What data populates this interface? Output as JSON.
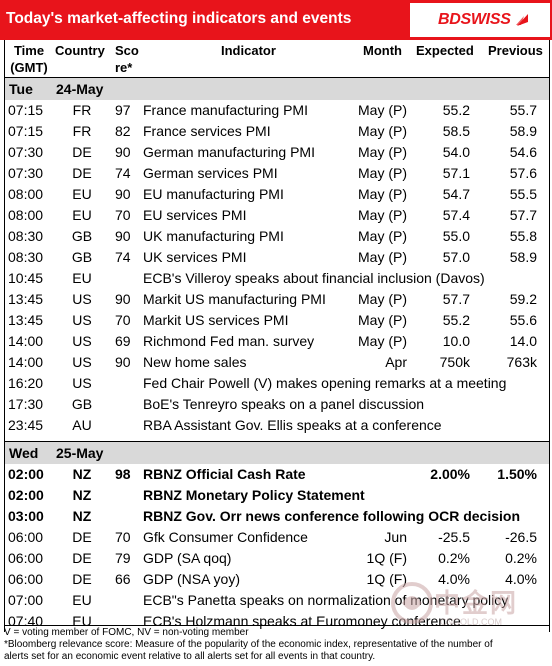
{
  "header": {
    "title": "Today's market-affecting indicators and events"
  },
  "brand": {
    "logo_text": "BDSWISS",
    "accent": "#e8141b"
  },
  "columns": {
    "time": [
      "Time",
      "(GMT)"
    ],
    "country": "Country",
    "score": [
      "Sco",
      "re*"
    ],
    "indicator": "Indicator",
    "month": "Month",
    "expected": "Expected",
    "previous": "Previous"
  },
  "days": [
    {
      "weekday": "Tue",
      "date": "24-May",
      "rows": [
        {
          "time": "07:15",
          "country": "FR",
          "score": "97",
          "indicator": "France manufacturing PMI",
          "month": "May (P)",
          "expected": "55.2",
          "previous": "55.7",
          "bold": false
        },
        {
          "time": "07:15",
          "country": "FR",
          "score": "82",
          "indicator": "France services PMI",
          "month": "May (P)",
          "expected": "58.5",
          "previous": "58.9",
          "bold": false
        },
        {
          "time": "07:30",
          "country": "DE",
          "score": "90",
          "indicator": "German manufacturing PMI",
          "month": "May (P)",
          "expected": "54.0",
          "previous": "54.6",
          "bold": false
        },
        {
          "time": "07:30",
          "country": "DE",
          "score": "74",
          "indicator": "German services PMI",
          "month": "May (P)",
          "expected": "57.1",
          "previous": "57.6",
          "bold": false
        },
        {
          "time": "08:00",
          "country": "EU",
          "score": "90",
          "indicator": "EU manufacturing PMI",
          "month": "May (P)",
          "expected": "54.7",
          "previous": "55.5",
          "bold": false
        },
        {
          "time": "08:00",
          "country": "EU",
          "score": "70",
          "indicator": "EU services PMI",
          "month": "May (P)",
          "expected": "57.4",
          "previous": "57.7",
          "bold": false
        },
        {
          "time": "08:30",
          "country": "GB",
          "score": "90",
          "indicator": "UK manufacturing PMI",
          "month": "May (P)",
          "expected": "55.0",
          "previous": "55.8",
          "bold": false
        },
        {
          "time": "08:30",
          "country": "GB",
          "score": "74",
          "indicator": "UK services PMI",
          "month": "May (P)",
          "expected": "57.0",
          "previous": "58.9",
          "bold": false
        },
        {
          "time": "10:45",
          "country": "EU",
          "score": "",
          "indicator": "ECB's Villeroy speaks about financial inclusion (Davos)",
          "month": "",
          "expected": "",
          "previous": "",
          "bold": false
        },
        {
          "time": "13:45",
          "country": "US",
          "score": "90",
          "indicator": "Markit US manufacturing PMI",
          "month": "May (P)",
          "expected": "57.7",
          "previous": "59.2",
          "bold": false
        },
        {
          "time": "13:45",
          "country": "US",
          "score": "70",
          "indicator": "Markit US services PMI",
          "month": "May (P)",
          "expected": "55.2",
          "previous": "55.6",
          "bold": false
        },
        {
          "time": "14:00",
          "country": "US",
          "score": "69",
          "indicator": "Richmond Fed man. survey",
          "month": "May (P)",
          "expected": "10.0",
          "previous": "14.0",
          "bold": false
        },
        {
          "time": "14:00",
          "country": "US",
          "score": "90",
          "indicator": "New home sales",
          "month": "Apr",
          "expected": "750k",
          "previous": "763k",
          "bold": false
        },
        {
          "time": "16:20",
          "country": "US",
          "score": "",
          "indicator": "Fed Chair Powell (V) makes opening remarks at a meeting",
          "month": "",
          "expected": "",
          "previous": "",
          "bold": false
        },
        {
          "time": "17:30",
          "country": "GB",
          "score": "",
          "indicator": "BoE's Tenreyro speaks on a panel discussion",
          "month": "",
          "expected": "",
          "previous": "",
          "bold": false
        },
        {
          "time": "23:45",
          "country": "AU",
          "score": "",
          "indicator": "RBA Assistant Gov. Ellis speaks at a conference",
          "month": "",
          "expected": "",
          "previous": "",
          "bold": false
        }
      ]
    },
    {
      "weekday": "Wed",
      "date": "25-May",
      "rows": [
        {
          "time": "02:00",
          "country": "NZ",
          "score": "98",
          "indicator": "RBNZ Official Cash Rate",
          "month": "",
          "expected": "2.00%",
          "previous": "1.50%",
          "bold": true
        },
        {
          "time": "02:00",
          "country": "NZ",
          "score": "",
          "indicator": "RBNZ Monetary Policy Statement",
          "month": "",
          "expected": "",
          "previous": "",
          "bold": true
        },
        {
          "time": "03:00",
          "country": "NZ",
          "score": "",
          "indicator": "RBNZ Gov. Orr news conference following OCR decision",
          "month": "",
          "expected": "",
          "previous": "",
          "bold": true
        },
        {
          "time": "06:00",
          "country": "DE",
          "score": "70",
          "indicator": "Gfk Consumer Confidence",
          "month": "Jun",
          "expected": "-25.5",
          "previous": "-26.5",
          "bold": false
        },
        {
          "time": "06:00",
          "country": "DE",
          "score": "79",
          "indicator": "GDP (SA qoq)",
          "month": "1Q (F)",
          "expected": "0.2%",
          "previous": "0.2%",
          "bold": false
        },
        {
          "time": "06:00",
          "country": "DE",
          "score": "66",
          "indicator": "GDP (NSA yoy)",
          "month": "1Q (F)",
          "expected": "4.0%",
          "previous": "4.0%",
          "bold": false
        },
        {
          "time": "07:00",
          "country": "EU",
          "score": "",
          "indicator": "ECB\"s Panetta speaks on normalization of monetary policy",
          "month": "",
          "expected": "",
          "previous": "",
          "bold": false
        },
        {
          "time": "07:40",
          "country": "EU",
          "score": "",
          "indicator": "ECB's Holzmann speaks at Euromoney conference",
          "month": "",
          "expected": "",
          "previous": "",
          "bold": false
        }
      ]
    }
  ],
  "footnotes": [
    "V = voting member of FOMC, NV = non-voting member",
    "*Bloomberg relevance score:  Measure of the popularity of the economic index, representative of the number of",
    "alerts set for an economic event relative to all alerts set for all events in that country."
  ],
  "watermark": {
    "text": "中金网",
    "url": "CNGOLD.COM"
  }
}
